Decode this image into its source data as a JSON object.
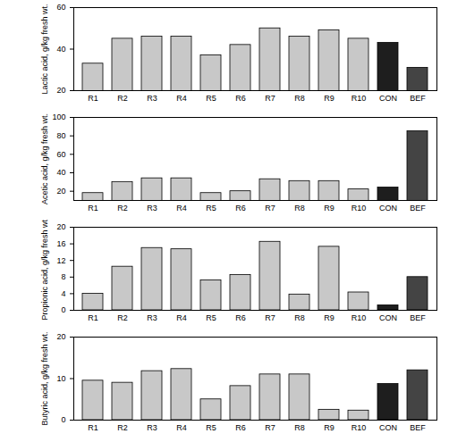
{
  "chart_data": [
    {
      "type": "bar",
      "y_label": "Lactic acid, g/kg fresh wt.",
      "categories": [
        "R1",
        "R2",
        "R3",
        "R4",
        "R5",
        "R6",
        "R7",
        "R8",
        "R9",
        "R10",
        "CON",
        "BEF"
      ],
      "values": [
        33,
        45,
        46,
        46,
        37,
        42,
        50,
        46,
        49,
        45,
        43,
        31
      ],
      "colors": [
        "#c8c8c8",
        "#c8c8c8",
        "#c8c8c8",
        "#c8c8c8",
        "#c8c8c8",
        "#c8c8c8",
        "#c8c8c8",
        "#c8c8c8",
        "#c8c8c8",
        "#c8c8c8",
        "#1e1e1e",
        "#444444"
      ],
      "ylim": [
        20,
        60
      ],
      "yticks": [
        20,
        40,
        60
      ]
    },
    {
      "type": "bar",
      "y_label": "Acetic acid, g/kg fresh wt.",
      "categories": [
        "R1",
        "R2",
        "R3",
        "R4",
        "R5",
        "R6",
        "R7",
        "R8",
        "R9",
        "R10",
        "CON",
        "BEF"
      ],
      "values": [
        18,
        30,
        34,
        34,
        18,
        20,
        33,
        31,
        31,
        22,
        24,
        85
      ],
      "colors": [
        "#c8c8c8",
        "#c8c8c8",
        "#c8c8c8",
        "#c8c8c8",
        "#c8c8c8",
        "#c8c8c8",
        "#c8c8c8",
        "#c8c8c8",
        "#c8c8c8",
        "#c8c8c8",
        "#1e1e1e",
        "#444444"
      ],
      "ylim": [
        10,
        100
      ],
      "yticks": [
        20,
        40,
        60,
        80,
        100
      ]
    },
    {
      "type": "bar",
      "y_label": "Propionic acid, g/kg fresh wt.",
      "categories": [
        "R1",
        "R2",
        "R3",
        "R4",
        "R5",
        "R6",
        "R7",
        "R8",
        "R9",
        "R10",
        "CON",
        "BEF"
      ],
      "values": [
        4,
        10.5,
        15,
        14.7,
        7.2,
        8.5,
        16.5,
        3.8,
        15.3,
        4.3,
        1.2,
        8
      ],
      "colors": [
        "#c8c8c8",
        "#c8c8c8",
        "#c8c8c8",
        "#c8c8c8",
        "#c8c8c8",
        "#c8c8c8",
        "#c8c8c8",
        "#c8c8c8",
        "#c8c8c8",
        "#c8c8c8",
        "#1e1e1e",
        "#444444"
      ],
      "ylim": [
        0,
        20
      ],
      "yticks": [
        0,
        4,
        8,
        12,
        16,
        20
      ]
    },
    {
      "type": "bar",
      "y_label": "Butyric acid, g/kg fresh wt.",
      "categories": [
        "R1",
        "R2",
        "R3",
        "R4",
        "R5",
        "R6",
        "R7",
        "R8",
        "R9",
        "R10",
        "CON",
        "BEF"
      ],
      "values": [
        9.5,
        9,
        11.8,
        12.3,
        5,
        8.2,
        11,
        11,
        2.5,
        2.3,
        8.7,
        12
      ],
      "colors": [
        "#c8c8c8",
        "#c8c8c8",
        "#c8c8c8",
        "#c8c8c8",
        "#c8c8c8",
        "#c8c8c8",
        "#c8c8c8",
        "#c8c8c8",
        "#c8c8c8",
        "#c8c8c8",
        "#1e1e1e",
        "#444444"
      ],
      "ylim": [
        0,
        20
      ],
      "yticks": [
        0,
        10,
        20
      ]
    }
  ]
}
